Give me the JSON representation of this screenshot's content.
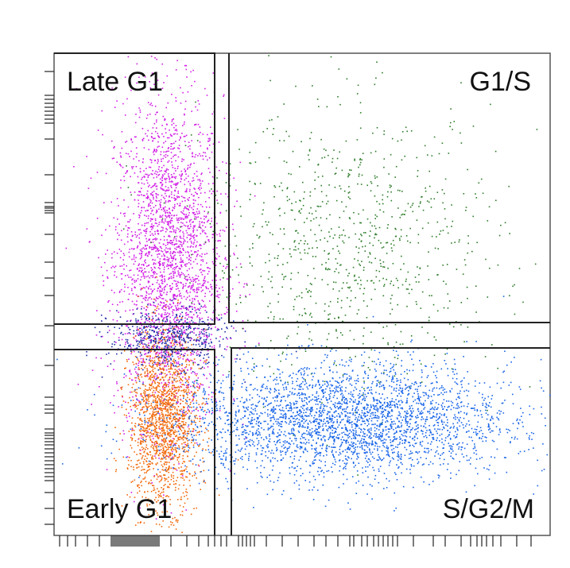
{
  "chart_data": {
    "type": "scatter",
    "title": "",
    "xlabel": "",
    "ylabel": "",
    "xlim": [
      0,
      100
    ],
    "ylim": [
      0,
      100
    ],
    "grid": false,
    "gates": [
      {
        "name": "Late G1",
        "position": "top-left"
      },
      {
        "name": "G1/S",
        "position": "top-right"
      },
      {
        "name": "Early G1",
        "position": "bottom-left"
      },
      {
        "name": "S/G2/M",
        "position": "bottom-right"
      }
    ],
    "populations": [
      {
        "gate": "Late G1",
        "color": "#d21ee6",
        "center": [
          23,
          57
        ],
        "spread": [
          5.5,
          17
        ]
      },
      {
        "gate": "Early G1",
        "color": "#f26a0c",
        "center": [
          22,
          24
        ],
        "spread": [
          3.5,
          9
        ]
      },
      {
        "gate": "G1/S",
        "color": "#2e7d2a",
        "center": [
          60,
          60
        ],
        "spread": [
          15,
          14
        ]
      },
      {
        "gate": "S/G2/M",
        "color": "#1a66e8",
        "center": [
          58,
          24
        ],
        "spread": [
          17,
          6
        ]
      },
      {
        "gate": "boundary",
        "color": "#1f2ea8",
        "center": [
          23,
          41
        ],
        "spread": [
          6,
          3
        ]
      }
    ]
  },
  "colors": {
    "gate_line": "#222222",
    "frame": "#444444",
    "late_g1": "#d21ee6",
    "early_g1": "#f26a0c",
    "g1s": "#2e7d2a",
    "sg2m": "#1a66e8",
    "boundary": "#1f2ea8"
  }
}
